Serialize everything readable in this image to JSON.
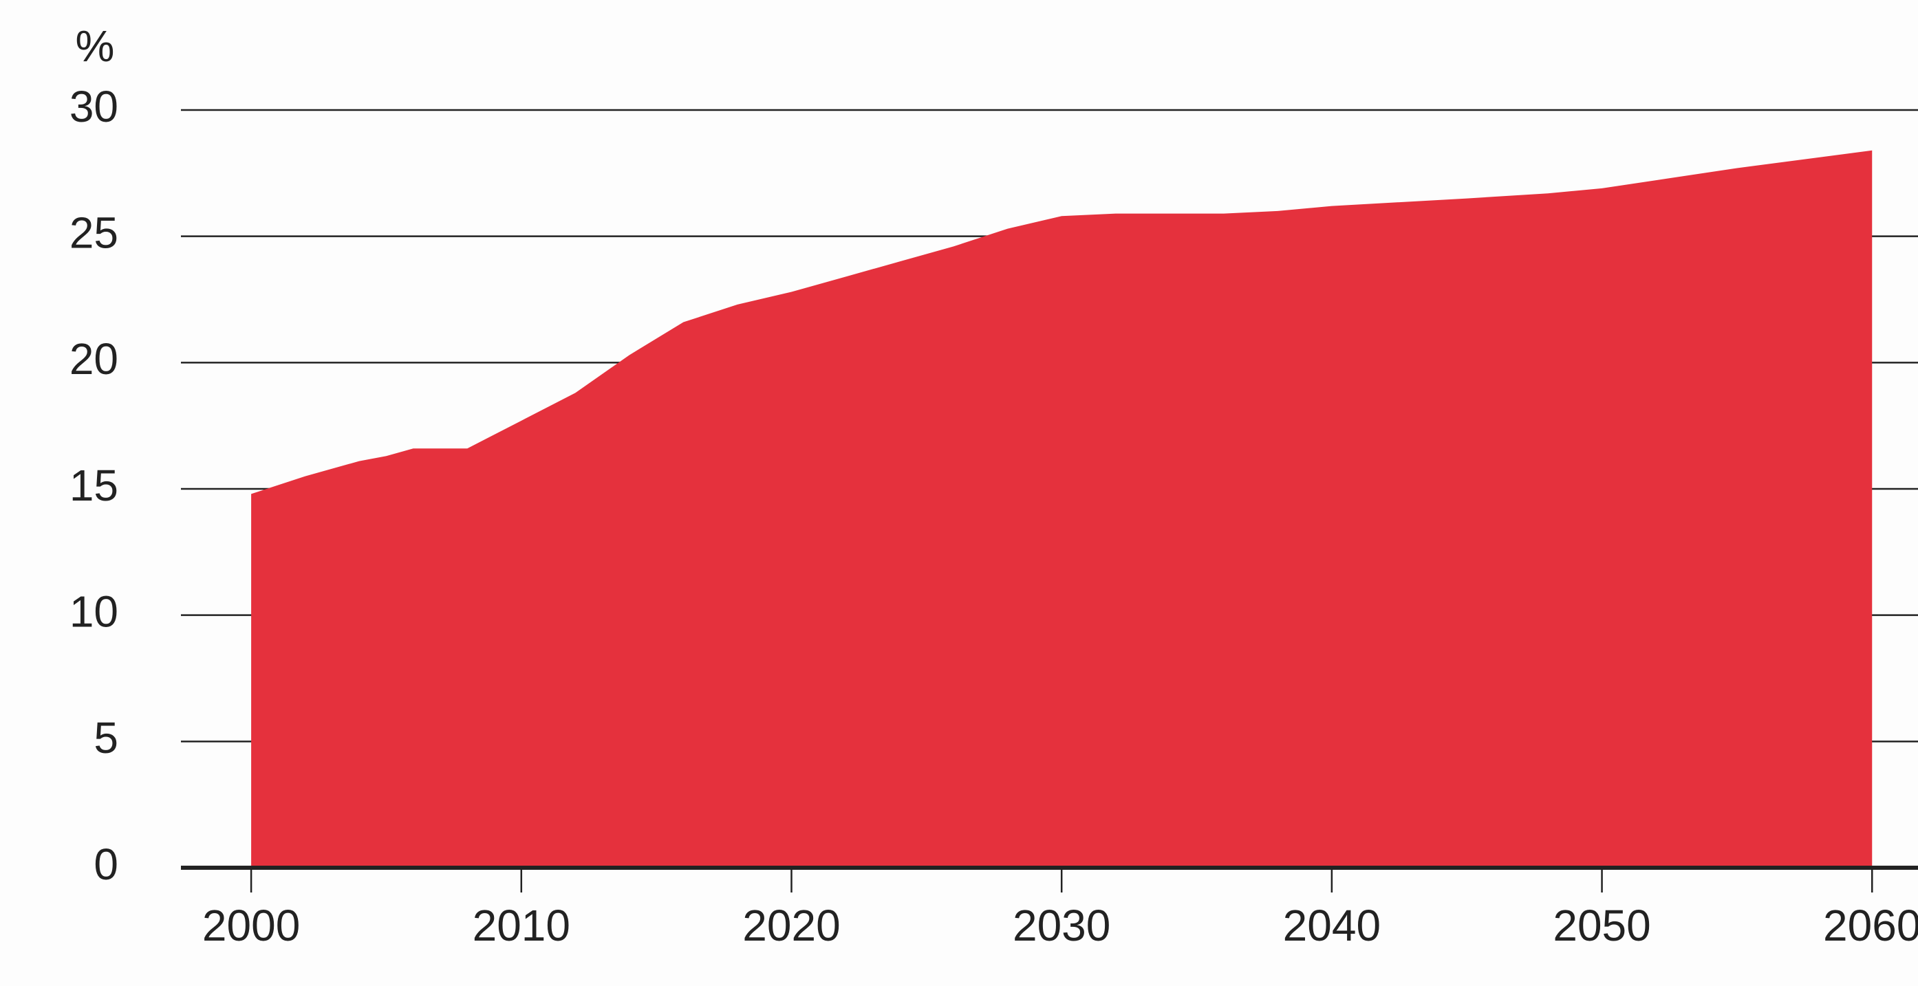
{
  "chart_data": {
    "type": "area",
    "y_label": "%",
    "x": [
      2000,
      2002,
      2004,
      2005,
      2006,
      2008,
      2010,
      2012,
      2014,
      2016,
      2018,
      2020,
      2022,
      2024,
      2026,
      2028,
      2030,
      2032,
      2034,
      2036,
      2038,
      2040,
      2045,
      2048,
      2050,
      2055,
      2060
    ],
    "values": [
      14.8,
      15.5,
      16.1,
      16.3,
      16.6,
      16.6,
      17.7,
      18.8,
      20.3,
      21.6,
      22.3,
      22.8,
      23.4,
      24.0,
      24.6,
      25.3,
      25.8,
      25.9,
      25.9,
      25.9,
      26.0,
      26.2,
      26.5,
      26.7,
      26.9,
      27.7,
      28.4
    ],
    "color": "#e5313d",
    "xlim": [
      1997.4,
      2061.7
    ],
    "xticks": [
      2000,
      2010,
      2020,
      2030,
      2040,
      2050,
      2060
    ],
    "ylim": [
      0,
      30
    ],
    "yticks": [
      0,
      5,
      10,
      15,
      20,
      25,
      30
    ],
    "grid": true
  }
}
